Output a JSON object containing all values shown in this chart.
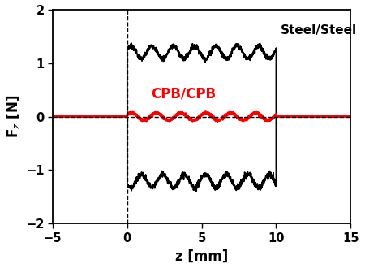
{
  "xlim": [
    -5,
    15
  ],
  "ylim": [
    -2,
    2
  ],
  "xticks": [
    -5,
    0,
    5,
    10,
    15
  ],
  "yticks": [
    -2,
    -1,
    0,
    1,
    2
  ],
  "xlabel": "z [mm]",
  "ylabel": "F_z [N]",
  "dashed_vline_x": 0,
  "dashed_hline_y": 0,
  "steel_label": "Steel/Steel",
  "cpb_label": "CPB/CPB",
  "steel_color": "#000000",
  "cpb_color": "#ff0000",
  "background_color": "#ffffff",
  "steel_upper_base": 1.2,
  "steel_lower_base": -1.2,
  "steel_amplitude": 0.12,
  "cpb_amplitude": 0.07,
  "stroke_start": 0.0,
  "stroke_end": 10.0,
  "steel_num_oscillations": 7,
  "cpb_num_oscillations": 6,
  "figsize": [
    4.5,
    3.3
  ],
  "dpi": 100
}
